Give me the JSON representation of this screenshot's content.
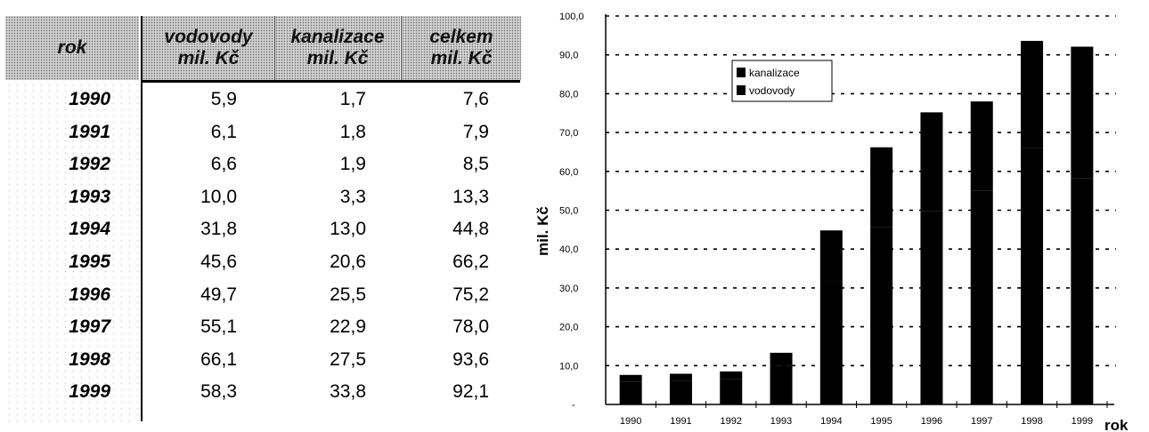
{
  "table": {
    "headers": [
      {
        "line1": "rok",
        "line2": ""
      },
      {
        "line1": "vodovody",
        "line2": "mil. Kč"
      },
      {
        "line1": "kanalizace",
        "line2": "mil. Kč"
      },
      {
        "line1": "celkem",
        "line2": "mil. Kč"
      }
    ],
    "rows": [
      {
        "year": "1990",
        "vodovody": "5,9",
        "kanalizace": "1,7",
        "celkem": "7,6"
      },
      {
        "year": "1991",
        "vodovody": "6,1",
        "kanalizace": "1,8",
        "celkem": "7,9"
      },
      {
        "year": "1992",
        "vodovody": "6,6",
        "kanalizace": "1,9",
        "celkem": "8,5"
      },
      {
        "year": "1993",
        "vodovody": "10,0",
        "kanalizace": "3,3",
        "celkem": "13,3"
      },
      {
        "year": "1994",
        "vodovody": "31,8",
        "kanalizace": "13,0",
        "celkem": "44,8"
      },
      {
        "year": "1995",
        "vodovody": "45,6",
        "kanalizace": "20,6",
        "celkem": "66,2"
      },
      {
        "year": "1996",
        "vodovody": "49,7",
        "kanalizace": "25,5",
        "celkem": "75,2"
      },
      {
        "year": "1997",
        "vodovody": "55,1",
        "kanalizace": "22,9",
        "celkem": "78,0"
      },
      {
        "year": "1998",
        "vodovody": "66,1",
        "kanalizace": "27,5",
        "celkem": "93,6"
      },
      {
        "year": "1999",
        "vodovody": "58,3",
        "kanalizace": "33,8",
        "celkem": "92,1"
      }
    ]
  },
  "chart_data": {
    "type": "bar",
    "stacked": true,
    "categories": [
      "1990",
      "1991",
      "1992",
      "1993",
      "1994",
      "1995",
      "1996",
      "1997",
      "1998",
      "1999"
    ],
    "series": [
      {
        "name": "vodovody",
        "values": [
          5.9,
          6.1,
          6.6,
          10.0,
          31.8,
          45.6,
          49.7,
          55.1,
          66.1,
          58.3
        ]
      },
      {
        "name": "kanalizace",
        "values": [
          1.7,
          1.8,
          1.9,
          3.3,
          13.0,
          20.6,
          25.5,
          22.9,
          27.5,
          33.8
        ]
      }
    ],
    "ylabel": "mil. Kč",
    "xlabel": "rok",
    "ylim": [
      0,
      100
    ],
    "yticks": [
      "-",
      "10,0",
      "20,0",
      "30,0",
      "40,0",
      "50,0",
      "60,0",
      "70,0",
      "80,0",
      "90,0",
      "100,0"
    ],
    "grid": true,
    "legend_position": "top-center",
    "legend": [
      "kanalizace",
      "vodovody"
    ],
    "bar_color": "#000000"
  }
}
